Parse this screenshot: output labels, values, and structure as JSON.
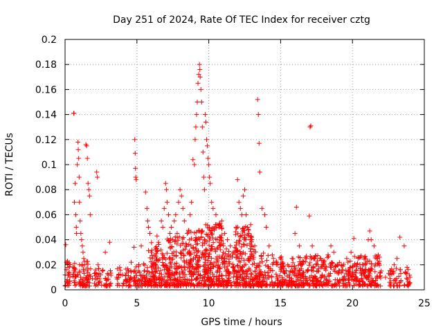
{
  "chart_data": {
    "type": "scatter",
    "title": "Day 251 of 2024, Rate Of TEC Index for receiver cztg",
    "xlabel": "GPS time / hours",
    "ylabel": "ROTI / TECUs",
    "xlim": [
      0,
      25
    ],
    "ylim": [
      0,
      0.2
    ],
    "xticks": [
      "0",
      "5",
      "10",
      "15",
      "20",
      "25"
    ],
    "yticks": [
      "0",
      "0.02",
      "0.04",
      "0.06",
      "0.08",
      "0.1",
      "0.12",
      "0.14",
      "0.16",
      "0.18",
      "0.2"
    ],
    "grid": true,
    "marker": "+",
    "color": "#ff0000",
    "series": [
      {
        "points": [
          [
            0.05,
            0.036
          ],
          [
            0.1,
            0.022
          ],
          [
            0.15,
            0.008
          ],
          [
            0.2,
            0.018
          ],
          [
            0.25,
            0.012
          ],
          [
            0.3,
            0.005
          ],
          [
            0.6,
            0.141
          ],
          [
            0.62,
            0.141
          ],
          [
            0.65,
            0.07
          ],
          [
            0.7,
            0.085
          ],
          [
            0.75,
            0.06
          ],
          [
            0.78,
            0.05
          ],
          [
            0.8,
            0.045
          ],
          [
            0.85,
            0.1
          ],
          [
            0.9,
            0.118
          ],
          [
            0.92,
            0.112
          ],
          [
            0.95,
            0.105
          ],
          [
            0.98,
            0.09
          ],
          [
            1.0,
            0.07
          ],
          [
            1.05,
            0.055
          ],
          [
            1.1,
            0.045
          ],
          [
            1.15,
            0.04
          ],
          [
            1.2,
            0.035
          ],
          [
            1.25,
            0.03
          ],
          [
            1.3,
            0.025
          ],
          [
            1.35,
            0.02
          ],
          [
            1.45,
            0.116
          ],
          [
            1.5,
            0.115
          ],
          [
            1.55,
            0.105
          ],
          [
            1.6,
            0.085
          ],
          [
            1.65,
            0.08
          ],
          [
            1.7,
            0.075
          ],
          [
            1.75,
            0.06
          ],
          [
            0.7,
            0.01
          ],
          [
            0.9,
            0.012
          ],
          [
            1.1,
            0.008
          ],
          [
            1.3,
            0.015
          ],
          [
            1.5,
            0.01
          ],
          [
            1.7,
            0.012
          ],
          [
            1.9,
            0.009
          ],
          [
            2.2,
            0.094
          ],
          [
            2.25,
            0.09
          ],
          [
            2.3,
            0.02
          ],
          [
            2.6,
            0.015
          ],
          [
            2.8,
            0.03
          ],
          [
            3.1,
            0.038
          ],
          [
            3.0,
            0.012
          ],
          [
            3.6,
            0.01
          ],
          [
            3.8,
            0.018
          ],
          [
            4.0,
            0.012
          ],
          [
            4.2,
            0.008
          ],
          [
            4.4,
            0.015
          ],
          [
            4.6,
            0.022
          ],
          [
            4.8,
            0.034
          ],
          [
            4.85,
            0.12
          ],
          [
            4.88,
            0.109
          ],
          [
            4.9,
            0.097
          ],
          [
            4.92,
            0.09
          ],
          [
            4.95,
            0.088
          ],
          [
            5.1,
            0.015
          ],
          [
            5.3,
            0.035
          ],
          [
            5.5,
            0.015
          ],
          [
            5.6,
            0.078
          ],
          [
            5.7,
            0.065
          ],
          [
            5.75,
            0.055
          ],
          [
            5.8,
            0.05
          ],
          [
            5.9,
            0.045
          ],
          [
            6.0,
            0.03
          ],
          [
            6.1,
            0.025
          ],
          [
            6.3,
            0.032
          ],
          [
            6.4,
            0.043
          ],
          [
            6.5,
            0.038
          ],
          [
            6.7,
            0.055
          ],
          [
            6.8,
            0.05
          ],
          [
            6.9,
            0.065
          ],
          [
            7.0,
            0.085
          ],
          [
            7.05,
            0.08
          ],
          [
            7.1,
            0.07
          ],
          [
            7.2,
            0.06
          ],
          [
            7.3,
            0.045
          ],
          [
            7.4,
            0.05
          ],
          [
            7.5,
            0.04
          ],
          [
            7.6,
            0.055
          ],
          [
            7.7,
            0.06
          ],
          [
            7.8,
            0.045
          ],
          [
            7.9,
            0.07
          ],
          [
            8.0,
            0.08
          ],
          [
            8.1,
            0.075
          ],
          [
            8.2,
            0.065
          ],
          [
            8.3,
            0.055
          ],
          [
            8.5,
            0.045
          ],
          [
            8.7,
            0.06
          ],
          [
            8.8,
            0.07
          ],
          [
            8.9,
            0.104
          ],
          [
            9.0,
            0.1
          ],
          [
            9.05,
            0.12
          ],
          [
            9.1,
            0.13
          ],
          [
            9.15,
            0.14
          ],
          [
            9.2,
            0.15
          ],
          [
            9.25,
            0.165
          ],
          [
            9.3,
            0.172
          ],
          [
            9.35,
            0.18
          ],
          [
            9.38,
            0.176
          ],
          [
            9.4,
            0.17
          ],
          [
            9.45,
            0.16
          ],
          [
            9.5,
            0.15
          ],
          [
            9.55,
            0.13
          ],
          [
            9.6,
            0.11
          ],
          [
            9.65,
            0.09
          ],
          [
            9.7,
            0.08
          ],
          [
            9.75,
            0.14
          ],
          [
            9.8,
            0.134
          ],
          [
            9.85,
            0.12
          ],
          [
            9.9,
            0.115
          ],
          [
            9.95,
            0.105
          ],
          [
            10.0,
            0.1
          ],
          [
            10.05,
            0.09
          ],
          [
            10.1,
            0.085
          ],
          [
            10.2,
            0.07
          ],
          [
            10.3,
            0.065
          ],
          [
            10.5,
            0.06
          ],
          [
            10.7,
            0.05
          ],
          [
            10.9,
            0.055
          ],
          [
            11.1,
            0.045
          ],
          [
            11.3,
            0.04
          ],
          [
            11.5,
            0.035
          ],
          [
            11.7,
            0.03
          ],
          [
            11.9,
            0.05
          ],
          [
            12.0,
            0.088
          ],
          [
            12.1,
            0.07
          ],
          [
            12.2,
            0.065
          ],
          [
            12.3,
            0.06
          ],
          [
            12.4,
            0.075
          ],
          [
            12.5,
            0.08
          ],
          [
            12.6,
            0.06
          ],
          [
            12.7,
            0.05
          ],
          [
            12.8,
            0.045
          ],
          [
            13.0,
            0.04
          ],
          [
            13.2,
            0.035
          ],
          [
            13.4,
            0.152
          ],
          [
            13.45,
            0.14
          ],
          [
            13.5,
            0.117
          ],
          [
            13.55,
            0.094
          ],
          [
            13.7,
            0.065
          ],
          [
            13.9,
            0.06
          ],
          [
            14.0,
            0.05
          ],
          [
            14.2,
            0.035
          ],
          [
            14.5,
            0.025
          ],
          [
            14.8,
            0.02
          ],
          [
            15.0,
            0.018
          ],
          [
            15.2,
            0.015
          ],
          [
            15.5,
            0.02
          ],
          [
            15.8,
            0.025
          ],
          [
            16.0,
            0.045
          ],
          [
            16.1,
            0.066
          ],
          [
            16.3,
            0.035
          ],
          [
            16.5,
            0.02
          ],
          [
            16.8,
            0.025
          ],
          [
            17.0,
            0.059
          ],
          [
            17.05,
            0.13
          ],
          [
            17.1,
            0.131
          ],
          [
            17.2,
            0.035
          ],
          [
            17.5,
            0.02
          ],
          [
            17.8,
            0.025
          ],
          [
            18.0,
            0.022
          ],
          [
            18.3,
            0.028
          ],
          [
            18.5,
            0.035
          ],
          [
            18.7,
            0.03
          ],
          [
            19.0,
            0.02
          ],
          [
            19.3,
            0.015
          ],
          [
            19.6,
            0.025
          ],
          [
            19.9,
            0.03
          ],
          [
            20.1,
            0.041
          ],
          [
            20.3,
            0.02
          ],
          [
            20.6,
            0.015
          ],
          [
            20.9,
            0.02
          ],
          [
            21.1,
            0.04
          ],
          [
            21.2,
            0.047
          ],
          [
            21.3,
            0.04
          ],
          [
            21.5,
            0.035
          ],
          [
            21.7,
            0.025
          ],
          [
            22.0,
            0.015
          ],
          [
            22.3,
            0.01
          ],
          [
            22.6,
            0.012
          ],
          [
            22.9,
            0.02
          ],
          [
            23.1,
            0.025
          ],
          [
            23.3,
            0.042
          ],
          [
            23.6,
            0.035
          ],
          [
            23.8,
            0.018
          ],
          [
            24.0,
            0.01
          ]
        ]
      }
    ],
    "density": [
      {
        "x0": 0.0,
        "x1": 0.4,
        "ymax": 0.02
      },
      {
        "x0": 0.5,
        "x1": 1.8,
        "ymax": 0.02
      },
      {
        "x0": 2.0,
        "x1": 3.2,
        "ymax": 0.014
      },
      {
        "x0": 3.6,
        "x1": 4.6,
        "ymax": 0.014
      },
      {
        "x0": 4.7,
        "x1": 5.8,
        "ymax": 0.02
      },
      {
        "x0": 5.8,
        "x1": 7.0,
        "ymax": 0.035
      },
      {
        "x0": 7.0,
        "x1": 8.5,
        "ymax": 0.04
      },
      {
        "x0": 8.5,
        "x1": 9.5,
        "ymax": 0.045
      },
      {
        "x0": 9.5,
        "x1": 11.0,
        "ymax": 0.05
      },
      {
        "x0": 11.0,
        "x1": 11.8,
        "ymax": 0.03
      },
      {
        "x0": 11.8,
        "x1": 13.0,
        "ymax": 0.05
      },
      {
        "x0": 13.0,
        "x1": 14.0,
        "ymax": 0.03
      },
      {
        "x0": 14.0,
        "x1": 16.5,
        "ymax": 0.025
      },
      {
        "x0": 16.5,
        "x1": 18.5,
        "ymax": 0.025
      },
      {
        "x0": 18.5,
        "x1": 20.0,
        "ymax": 0.02
      },
      {
        "x0": 20.0,
        "x1": 22.0,
        "ymax": 0.025
      },
      {
        "x0": 22.5,
        "x1": 23.4,
        "ymax": 0.015
      },
      {
        "x0": 23.6,
        "x1": 24.0,
        "ymax": 0.018
      }
    ]
  }
}
